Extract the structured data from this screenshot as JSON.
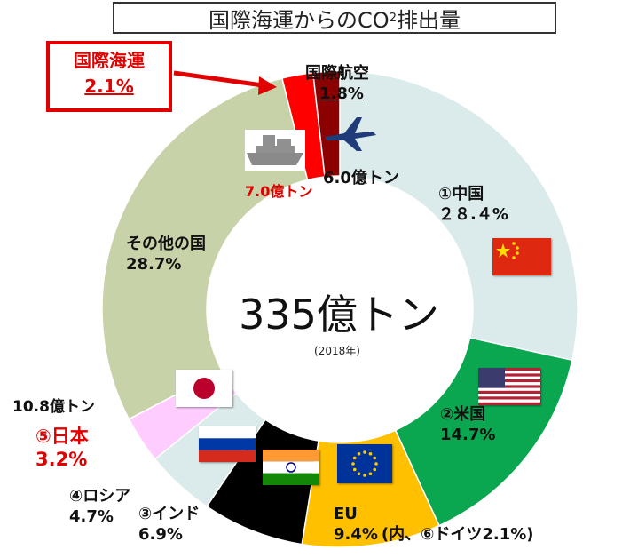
{
  "chart_data": {
    "type": "pie",
    "title": "国際海運からのCO",
    "title_sub": "2",
    "title_suffix": "排出量",
    "total_label": "335億トン",
    "year_label": "(2018年)",
    "start_angle_deg": 0,
    "slices": [
      {
        "name": "①中国",
        "value": 28.4,
        "value_label": "２８.４%",
        "color": "#dbeaea"
      },
      {
        "name": "②米国",
        "value": 14.7,
        "value_label": "14.7%",
        "color": "#0aa650"
      },
      {
        "name": "EU",
        "value": 9.4,
        "value_label": "9.4%",
        "note": "(内、⑥ドイツ2.1%)",
        "color": "#ffc000"
      },
      {
        "name": "③インド",
        "value": 6.9,
        "value_label": "6.9%",
        "color": "#000000"
      },
      {
        "name": "④ロシア",
        "value": 4.7,
        "value_label": "4.7%",
        "color": "#dbeaea"
      },
      {
        "name": "⑤日本",
        "value": 3.2,
        "value_label": "3.2%",
        "extra": "10.8億トン",
        "color": "#ffccff"
      },
      {
        "name": "その他の国",
        "value": 28.7,
        "value_label": "28.7%",
        "color": "#c8d2a8"
      },
      {
        "name": "国際海運",
        "value": 2.1,
        "value_label": "2.1%",
        "extra": "7.0億トン",
        "color": "#ff0000"
      },
      {
        "name": "国際航空",
        "value": 1.8,
        "value_label": "1.8%",
        "extra": "6.0億トン",
        "color": "#8b0000"
      }
    ]
  },
  "icons": {
    "ship": "ship-icon",
    "plane": "airplane-icon"
  }
}
